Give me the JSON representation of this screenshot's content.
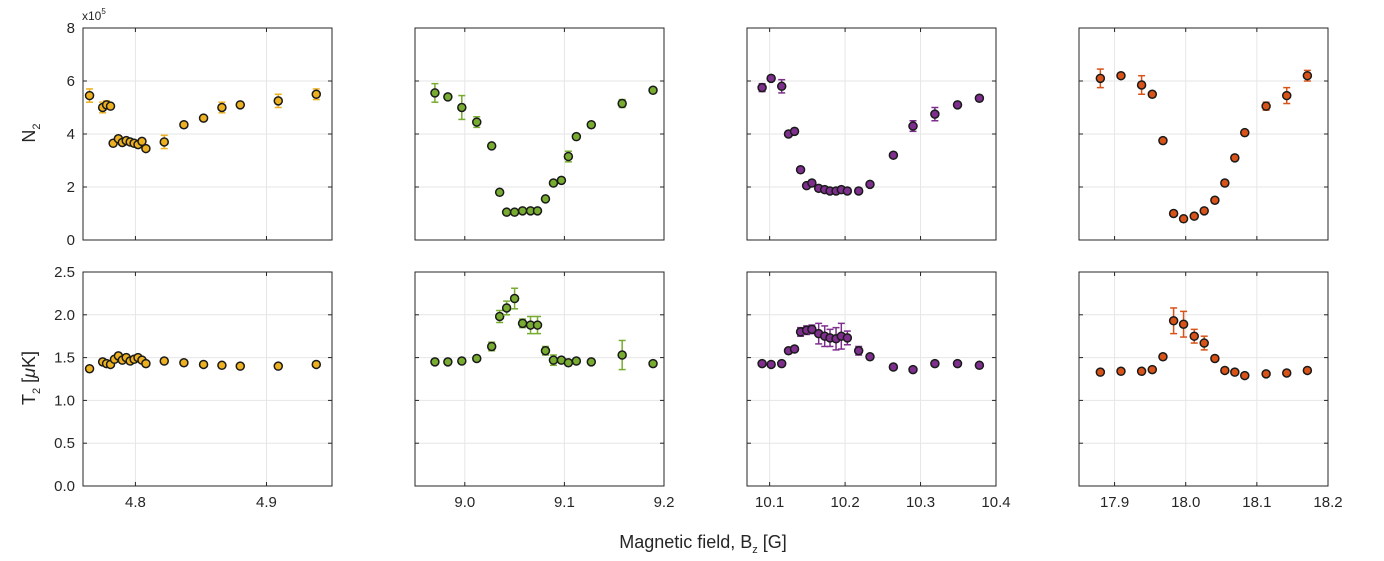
{
  "figure": {
    "xlabel_prefix": "Magnetic field, B",
    "xlabel_sub": "z",
    "xlabel_suffix": " [G]",
    "ylabel_top_prefix": "N",
    "ylabel_top_sub": "2",
    "ylabel_bottom_prefix": "T",
    "ylabel_bottom_sub": "2",
    "ylabel_bottom_suffix": " [",
    "ylabel_bottom_mu": "μ",
    "ylabel_bottom_unit": "K]",
    "exponent_base": "x10",
    "exponent_power": "5"
  },
  "chart_data": [
    {
      "type": "scatter",
      "panel": "top-1",
      "color": "#EDB120",
      "xlim": [
        4.76,
        4.95
      ],
      "ylim": [
        0,
        8
      ],
      "yticks": [
        "0",
        "2",
        "4",
        "6",
        "8"
      ],
      "xticks": [],
      "x": [
        4.765,
        4.775,
        4.778,
        4.781,
        4.783,
        4.787,
        4.79,
        4.793,
        4.796,
        4.799,
        4.802,
        4.805,
        4.808,
        4.822,
        4.837,
        4.852,
        4.866,
        4.88,
        4.909,
        4.938
      ],
      "y": [
        5.45,
        5.0,
        5.1,
        5.05,
        3.65,
        3.82,
        3.68,
        3.75,
        3.7,
        3.65,
        3.6,
        3.72,
        3.45,
        3.7,
        4.35,
        4.6,
        5.0,
        5.1,
        5.25,
        5.5
      ],
      "err": [
        0.25,
        0.2,
        0.15,
        0.1,
        0.1,
        0.1,
        0.1,
        0.1,
        0.1,
        0.1,
        0.1,
        0.1,
        0.1,
        0.25,
        0.1,
        0.1,
        0.2,
        0.1,
        0.25,
        0.2
      ]
    },
    {
      "type": "scatter",
      "panel": "top-2",
      "color": "#77AC30",
      "xlim": [
        8.95,
        9.2
      ],
      "ylim": [
        0,
        8
      ],
      "yticks": [],
      "xticks": [],
      "x": [
        8.97,
        8.983,
        8.997,
        9.012,
        9.027,
        9.035,
        9.042,
        9.05,
        9.058,
        9.066,
        9.073,
        9.081,
        9.089,
        9.097,
        9.104,
        9.112,
        9.127,
        9.158,
        9.189
      ],
      "y": [
        5.55,
        5.4,
        5.0,
        4.45,
        3.55,
        1.8,
        1.05,
        1.05,
        1.1,
        1.1,
        1.1,
        1.55,
        2.15,
        2.25,
        3.15,
        3.9,
        4.35,
        5.15,
        5.65
      ],
      "err": [
        0.35,
        0.1,
        0.45,
        0.2,
        0.1,
        0.1,
        0.1,
        0.1,
        0.1,
        0.1,
        0.1,
        0.1,
        0.1,
        0.1,
        0.2,
        0.1,
        0.1,
        0.15,
        0.1
      ]
    },
    {
      "type": "scatter",
      "panel": "top-3",
      "color": "#7E2F8E",
      "xlim": [
        10.07,
        10.4
      ],
      "ylim": [
        0,
        8
      ],
      "yticks": [],
      "xticks": [],
      "x": [
        10.09,
        10.102,
        10.116,
        10.125,
        10.133,
        10.141,
        10.149,
        10.156,
        10.165,
        10.173,
        10.18,
        10.188,
        10.195,
        10.203,
        10.218,
        10.233,
        10.264,
        10.29,
        10.319,
        10.349,
        10.378
      ],
      "y": [
        5.75,
        6.1,
        5.8,
        4.0,
        4.1,
        2.65,
        2.05,
        2.15,
        1.95,
        1.9,
        1.85,
        1.85,
        1.9,
        1.85,
        1.85,
        2.1,
        3.2,
        4.3,
        4.75,
        5.1,
        5.35
      ],
      "err": [
        0.15,
        0.1,
        0.25,
        0.1,
        0.1,
        0.1,
        0.1,
        0.1,
        0.1,
        0.1,
        0.1,
        0.1,
        0.1,
        0.1,
        0.1,
        0.1,
        0.1,
        0.2,
        0.25,
        0.1,
        0.1
      ]
    },
    {
      "type": "scatter",
      "panel": "top-4",
      "color": "#D95319",
      "xlim": [
        17.85,
        18.2
      ],
      "ylim": [
        0,
        8
      ],
      "yticks": [],
      "xticks": [],
      "x": [
        17.88,
        17.909,
        17.938,
        17.953,
        17.968,
        17.983,
        17.997,
        18.012,
        18.026,
        18.041,
        18.055,
        18.069,
        18.083,
        18.113,
        18.142,
        18.171
      ],
      "y": [
        6.1,
        6.2,
        5.85,
        5.5,
        3.75,
        1.0,
        0.8,
        0.9,
        1.1,
        1.5,
        2.15,
        3.1,
        4.05,
        5.05,
        5.45,
        6.2
      ],
      "err": [
        0.35,
        0.1,
        0.35,
        0.1,
        0.1,
        0.1,
        0.1,
        0.1,
        0.1,
        0.1,
        0.1,
        0.1,
        0.1,
        0.15,
        0.3,
        0.2
      ]
    },
    {
      "type": "scatter",
      "panel": "bottom-1",
      "color": "#EDB120",
      "xlim": [
        4.76,
        4.95
      ],
      "ylim": [
        0,
        2.5
      ],
      "yticks": [
        "0.0",
        "0.5",
        "1.0",
        "1.5",
        "2.0",
        "2.5"
      ],
      "xtick_values": [
        4.8,
        4.9
      ],
      "xticks": [
        "4.8",
        "4.9"
      ],
      "x": [
        4.765,
        4.775,
        4.778,
        4.781,
        4.784,
        4.787,
        4.79,
        4.793,
        4.796,
        4.799,
        4.802,
        4.805,
        4.808,
        4.822,
        4.837,
        4.852,
        4.866,
        4.88,
        4.909,
        4.938
      ],
      "y": [
        1.37,
        1.45,
        1.43,
        1.42,
        1.48,
        1.52,
        1.47,
        1.5,
        1.46,
        1.48,
        1.5,
        1.47,
        1.43,
        1.46,
        1.44,
        1.42,
        1.41,
        1.4,
        1.4,
        1.42
      ],
      "err": [
        0.03,
        0.03,
        0.03,
        0.03,
        0.03,
        0.03,
        0.03,
        0.03,
        0.03,
        0.03,
        0.03,
        0.03,
        0.03,
        0.03,
        0.03,
        0.03,
        0.03,
        0.03,
        0.03,
        0.03
      ]
    },
    {
      "type": "scatter",
      "panel": "bottom-2",
      "color": "#77AC30",
      "xlim": [
        8.95,
        9.2
      ],
      "ylim": [
        0,
        2.5
      ],
      "yticks": [],
      "xtick_values": [
        9.0,
        9.1,
        9.2
      ],
      "xticks": [
        "9.0",
        "9.1",
        "9.2"
      ],
      "x": [
        8.97,
        8.983,
        8.997,
        9.012,
        9.027,
        9.035,
        9.042,
        9.05,
        9.058,
        9.066,
        9.073,
        9.081,
        9.089,
        9.097,
        9.104,
        9.112,
        9.127,
        9.158,
        9.189
      ],
      "y": [
        1.45,
        1.45,
        1.46,
        1.49,
        1.63,
        1.98,
        2.08,
        2.19,
        1.9,
        1.88,
        1.88,
        1.58,
        1.47,
        1.47,
        1.44,
        1.46,
        1.45,
        1.53,
        1.43
      ],
      "err": [
        0.03,
        0.03,
        0.03,
        0.03,
        0.05,
        0.07,
        0.08,
        0.12,
        0.05,
        0.1,
        0.1,
        0.05,
        0.06,
        0.03,
        0.03,
        0.03,
        0.03,
        0.17,
        0.03
      ]
    },
    {
      "type": "scatter",
      "panel": "bottom-3",
      "color": "#7E2F8E",
      "xlim": [
        10.07,
        10.4
      ],
      "ylim": [
        0,
        2.5
      ],
      "yticks": [],
      "xtick_values": [
        10.1,
        10.2,
        10.3,
        10.4
      ],
      "xticks": [
        "10.1",
        "10.2",
        "10.3",
        "10.4"
      ],
      "x": [
        10.09,
        10.102,
        10.116,
        10.125,
        10.133,
        10.141,
        10.149,
        10.156,
        10.165,
        10.173,
        10.18,
        10.188,
        10.195,
        10.203,
        10.218,
        10.233,
        10.264,
        10.29,
        10.319,
        10.349,
        10.378
      ],
      "y": [
        1.43,
        1.42,
        1.43,
        1.58,
        1.6,
        1.8,
        1.82,
        1.83,
        1.78,
        1.75,
        1.73,
        1.72,
        1.75,
        1.73,
        1.58,
        1.51,
        1.39,
        1.36,
        1.43,
        1.43,
        1.41
      ],
      "err": [
        0.03,
        0.03,
        0.03,
        0.03,
        0.03,
        0.05,
        0.05,
        0.05,
        0.12,
        0.12,
        0.1,
        0.13,
        0.15,
        0.08,
        0.05,
        0.03,
        0.03,
        0.03,
        0.03,
        0.03,
        0.03
      ]
    },
    {
      "type": "scatter",
      "panel": "bottom-4",
      "color": "#D95319",
      "xlim": [
        17.85,
        18.2
      ],
      "ylim": [
        0,
        2.5
      ],
      "yticks": [],
      "xtick_values": [
        17.9,
        18.0,
        18.1,
        18.2
      ],
      "xticks": [
        "17.9",
        "18.0",
        "18.1",
        "18.2"
      ],
      "x": [
        17.88,
        17.909,
        17.938,
        17.953,
        17.968,
        17.983,
        17.997,
        18.012,
        18.026,
        18.041,
        18.055,
        18.069,
        18.083,
        18.113,
        18.142,
        18.171
      ],
      "y": [
        1.33,
        1.34,
        1.34,
        1.36,
        1.51,
        1.93,
        1.89,
        1.75,
        1.67,
        1.49,
        1.35,
        1.33,
        1.29,
        1.31,
        1.32,
        1.35
      ],
      "err": [
        0.03,
        0.03,
        0.03,
        0.03,
        0.03,
        0.15,
        0.15,
        0.08,
        0.08,
        0.03,
        0.03,
        0.03,
        0.03,
        0.03,
        0.03,
        0.03
      ]
    }
  ]
}
